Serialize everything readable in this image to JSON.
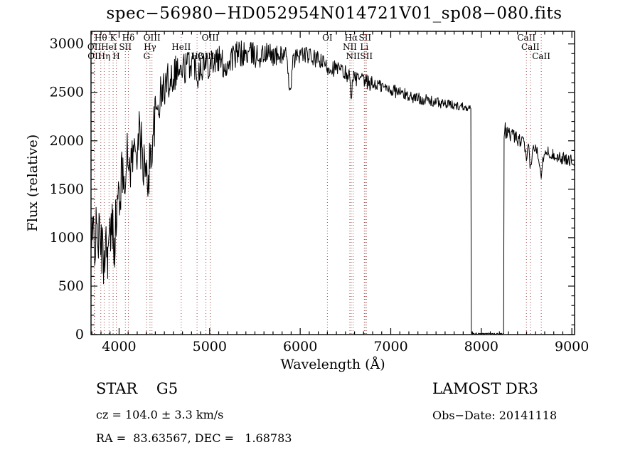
{
  "title": "spec−56980−HD052954N014721V01_sp08−080.fits",
  "footer": {
    "class_label": "STAR    G5",
    "survey": "LAMOST DR3",
    "cz": "cz = 104.0 ± 3.3 km/s",
    "obs_date": "Obs−Date: 20141118",
    "ra_dec": "RA =  83.63567, DEC =   1.68783"
  },
  "chart_data": {
    "type": "line",
    "title": "spec−56980−HD052954N014721V01_sp08−080.fits",
    "xlabel": "Wavelength (Å)",
    "ylabel": "Flux (relative)",
    "xlim": [
      3690,
      9030
    ],
    "ylim": [
      0,
      3130
    ],
    "x_ticks": [
      4000,
      5000,
      6000,
      7000,
      8000,
      9000
    ],
    "y_ticks": [
      0,
      500,
      1000,
      1500,
      2000,
      2500,
      3000
    ],
    "x_minor_step": 100,
    "y_minor_step": 100,
    "grid": false,
    "line_color": "#000000",
    "feature_line_color": "#9c4242",
    "features": [
      {
        "wavelength": 3726,
        "label": "OII",
        "row": 2
      },
      {
        "wavelength": 3729,
        "label": "OII",
        "row": 3
      },
      {
        "wavelength": 3798,
        "label": "Hθ",
        "row": 1
      },
      {
        "wavelength": 3835,
        "label": "Hη",
        "row": 3
      },
      {
        "wavelength": 3889,
        "label": "HeI",
        "row": 2
      },
      {
        "wavelength": 3934,
        "label": "K",
        "row": 1
      },
      {
        "wavelength": 3969,
        "label": "H",
        "row": 3
      },
      {
        "wavelength": 4069,
        "label": "SII",
        "row": 2
      },
      {
        "wavelength": 4102,
        "label": "Hδ",
        "row": 1
      },
      {
        "wavelength": 4305,
        "label": "G",
        "row": 3
      },
      {
        "wavelength": 4341,
        "label": "Hγ",
        "row": 2
      },
      {
        "wavelength": 4363,
        "label": "OIII",
        "row": 1
      },
      {
        "wavelength": 4686,
        "label": "HeII",
        "row": 2
      },
      {
        "wavelength": 4861,
        "label": "Hβ",
        "row": 3
      },
      {
        "wavelength": 4959,
        "label": "OIII",
        "row": 3
      },
      {
        "wavelength": 5007,
        "label": "OIII",
        "row": 1
      },
      {
        "wavelength": 6300,
        "label": "OI",
        "row": 1
      },
      {
        "wavelength": 6548,
        "label": "NII",
        "row": 2
      },
      {
        "wavelength": 6563,
        "label": "Hα",
        "row": 1
      },
      {
        "wavelength": 6584,
        "label": "NII",
        "row": 3
      },
      {
        "wavelength": 6708,
        "label": "Li",
        "row": 2
      },
      {
        "wavelength": 6716,
        "label": "SII",
        "row": 1
      },
      {
        "wavelength": 6731,
        "label": "SII",
        "row": 3
      },
      {
        "wavelength": 8498,
        "label": "CaII",
        "row": 1
      },
      {
        "wavelength": 8542,
        "label": "CaII",
        "row": 2
      },
      {
        "wavelength": 8662,
        "label": "CaII",
        "row": 3
      }
    ],
    "spectrum_envelope": [
      [
        3690,
        950,
        520
      ],
      [
        3705,
        800,
        450
      ],
      [
        3720,
        1150,
        350
      ],
      [
        3740,
        950,
        350
      ],
      [
        3760,
        1050,
        300
      ],
      [
        3785,
        1000,
        300
      ],
      [
        3810,
        900,
        300
      ],
      [
        3830,
        700,
        250
      ],
      [
        3850,
        1000,
        280
      ],
      [
        3875,
        850,
        280
      ],
      [
        3900,
        1000,
        300
      ],
      [
        3925,
        1100,
        300
      ],
      [
        3950,
        1000,
        320
      ],
      [
        3975,
        1250,
        300
      ],
      [
        4000,
        1450,
        300
      ],
      [
        4030,
        1600,
        300
      ],
      [
        4060,
        1700,
        280
      ],
      [
        4090,
        1800,
        280
      ],
      [
        4120,
        1750,
        260
      ],
      [
        4150,
        1850,
        260
      ],
      [
        4180,
        1900,
        280
      ],
      [
        4210,
        2050,
        300
      ],
      [
        4240,
        1950,
        300
      ],
      [
        4270,
        1800,
        320
      ],
      [
        4300,
        1550,
        300
      ],
      [
        4330,
        1700,
        280
      ],
      [
        4360,
        1950,
        260
      ],
      [
        4400,
        2250,
        240
      ],
      [
        4440,
        2400,
        220
      ],
      [
        4480,
        2500,
        220
      ],
      [
        4520,
        2600,
        200
      ],
      [
        4560,
        2650,
        200
      ],
      [
        4600,
        2700,
        200
      ],
      [
        4640,
        2750,
        190
      ],
      [
        4680,
        2700,
        190
      ],
      [
        4720,
        2750,
        180
      ],
      [
        4760,
        2780,
        170
      ],
      [
        4800,
        2820,
        160
      ],
      [
        4840,
        2780,
        160
      ],
      [
        4870,
        2700,
        160
      ],
      [
        4900,
        2800,
        160
      ],
      [
        4940,
        2780,
        170
      ],
      [
        4980,
        2800,
        170
      ],
      [
        5020,
        2850,
        160
      ],
      [
        5060,
        2820,
        160
      ],
      [
        5100,
        2840,
        150
      ],
      [
        5140,
        2800,
        150
      ],
      [
        5180,
        2760,
        150
      ],
      [
        5220,
        2840,
        150
      ],
      [
        5260,
        2870,
        150
      ],
      [
        5300,
        2880,
        150
      ],
      [
        5350,
        2900,
        140
      ],
      [
        5400,
        2890,
        140
      ],
      [
        5450,
        2900,
        130
      ],
      [
        5500,
        2880,
        130
      ],
      [
        5550,
        2870,
        130
      ],
      [
        5600,
        2890,
        120
      ],
      [
        5650,
        2900,
        120
      ],
      [
        5700,
        2880,
        110
      ],
      [
        5750,
        2870,
        110
      ],
      [
        5800,
        2890,
        100
      ],
      [
        5840,
        2900,
        90
      ],
      [
        5875,
        2600,
        70
      ],
      [
        5895,
        2550,
        70
      ],
      [
        5920,
        2820,
        90
      ],
      [
        5960,
        2870,
        90
      ],
      [
        6000,
        2900,
        90
      ],
      [
        6050,
        2890,
        90
      ],
      [
        6100,
        2870,
        90
      ],
      [
        6150,
        2850,
        90
      ],
      [
        6200,
        2830,
        90
      ],
      [
        6250,
        2800,
        90
      ],
      [
        6300,
        2760,
        90
      ],
      [
        6350,
        2760,
        90
      ],
      [
        6400,
        2740,
        90
      ],
      [
        6450,
        2720,
        90
      ],
      [
        6500,
        2700,
        90
      ],
      [
        6540,
        2680,
        80
      ],
      [
        6563,
        2480,
        70
      ],
      [
        6590,
        2650,
        80
      ],
      [
        6640,
        2640,
        80
      ],
      [
        6690,
        2620,
        80
      ],
      [
        6740,
        2600,
        80
      ],
      [
        6790,
        2590,
        80
      ],
      [
        6850,
        2580,
        70
      ],
      [
        6900,
        2560,
        70
      ],
      [
        6950,
        2540,
        70
      ],
      [
        7000,
        2530,
        70
      ],
      [
        7060,
        2510,
        70
      ],
      [
        7120,
        2490,
        70
      ],
      [
        7180,
        2470,
        60
      ],
      [
        7240,
        2450,
        60
      ],
      [
        7300,
        2440,
        60
      ],
      [
        7360,
        2430,
        60
      ],
      [
        7420,
        2410,
        60
      ],
      [
        7480,
        2400,
        55
      ],
      [
        7540,
        2390,
        55
      ],
      [
        7600,
        2380,
        50
      ],
      [
        7660,
        2370,
        50
      ],
      [
        7720,
        2360,
        50
      ],
      [
        7780,
        2360,
        45
      ],
      [
        7840,
        2350,
        40
      ],
      [
        7878,
        2340,
        30
      ],
      [
        7884,
        2320,
        30
      ],
      [
        7890,
        20,
        15
      ],
      [
        7950,
        8,
        8
      ],
      [
        8050,
        8,
        8
      ],
      [
        8150,
        8,
        8
      ],
      [
        8240,
        8,
        8
      ],
      [
        8246,
        12,
        10
      ],
      [
        8252,
        2120,
        90
      ],
      [
        8290,
        2080,
        70
      ],
      [
        8330,
        2060,
        70
      ],
      [
        8380,
        2030,
        70
      ],
      [
        8430,
        2000,
        70
      ],
      [
        8475,
        1980,
        60
      ],
      [
        8498,
        1760,
        50
      ],
      [
        8520,
        1950,
        55
      ],
      [
        8542,
        1720,
        50
      ],
      [
        8575,
        1930,
        55
      ],
      [
        8620,
        1900,
        55
      ],
      [
        8662,
        1660,
        50
      ],
      [
        8695,
        1900,
        55
      ],
      [
        8740,
        1880,
        60
      ],
      [
        8790,
        1860,
        60
      ],
      [
        8840,
        1840,
        65
      ],
      [
        8890,
        1820,
        65
      ],
      [
        8940,
        1810,
        65
      ],
      [
        8990,
        1800,
        65
      ],
      [
        9030,
        1790,
        60
      ]
    ],
    "gap_region": [
      7890,
      8246
    ]
  }
}
